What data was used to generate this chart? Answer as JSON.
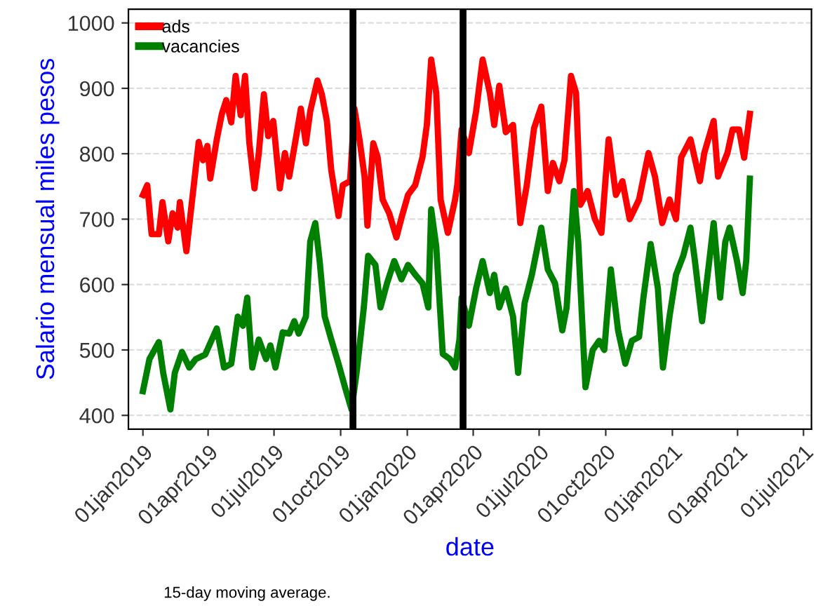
{
  "chart_data": {
    "type": "line",
    "xlabel": "date",
    "ylabel": "Salario mensual miles pesos",
    "annotations": [
      "15-day moving average."
    ],
    "xlim": [
      "2018-12-12",
      "2021-07-12"
    ],
    "ylim": [
      379,
      1021
    ],
    "xticks": [
      {
        "value": "2019-01-01",
        "label": "01jan2019"
      },
      {
        "value": "2019-04-01",
        "label": "01apr2019"
      },
      {
        "value": "2019-07-01",
        "label": "01jul2019"
      },
      {
        "value": "2019-10-01",
        "label": "01oct2019"
      },
      {
        "value": "2020-01-01",
        "label": "01jan2020"
      },
      {
        "value": "2020-04-01",
        "label": "01apr2020"
      },
      {
        "value": "2020-07-01",
        "label": "01jul2020"
      },
      {
        "value": "2020-10-01",
        "label": "01oct2020"
      },
      {
        "value": "2021-01-01",
        "label": "01jan2021"
      },
      {
        "value": "2021-04-01",
        "label": "01apr2021"
      },
      {
        "value": "2021-07-01",
        "label": "01jul2021"
      }
    ],
    "yticks": [
      400,
      500,
      600,
      700,
      800,
      900,
      1000
    ],
    "grid": "y",
    "legend": "top left",
    "ref_lines": [
      {
        "axis": "x",
        "value": "2019-10-18",
        "color": "#000000"
      },
      {
        "axis": "x",
        "value": "2020-03-18",
        "color": "#000000"
      }
    ],
    "series": [
      {
        "name": "ads",
        "color": "#ff0000",
        "x": [
          "2019-01-01",
          "2019-01-07",
          "2019-01-13",
          "2019-01-23",
          "2019-01-28",
          "2019-02-05",
          "2019-02-11",
          "2019-02-18",
          "2019-02-21",
          "2019-03-02",
          "2019-03-09",
          "2019-03-19",
          "2019-03-25",
          "2019-03-31",
          "2019-04-04",
          "2019-04-13",
          "2019-04-20",
          "2019-04-26",
          "2019-05-03",
          "2019-05-09",
          "2019-05-16",
          "2019-05-22",
          "2019-05-28",
          "2019-06-04",
          "2019-06-10",
          "2019-06-17",
          "2019-06-23",
          "2019-06-30",
          "2019-07-09",
          "2019-07-16",
          "2019-07-22",
          "2019-08-01",
          "2019-08-07",
          "2019-08-14",
          "2019-08-20",
          "2019-08-30",
          "2019-09-05",
          "2019-09-12",
          "2019-09-18",
          "2019-09-28",
          "2019-10-04",
          "2019-10-14",
          "2019-10-20",
          "2019-10-27",
          "2019-11-03",
          "2019-11-07",
          "2019-11-15",
          "2019-11-21",
          "2019-11-28",
          "2019-12-07",
          "2019-12-17",
          "2019-12-24",
          "2020-01-02",
          "2020-01-12",
          "2020-01-22",
          "2020-01-28",
          "2020-02-03",
          "2020-02-10",
          "2020-02-16",
          "2020-02-26",
          "2020-03-07",
          "2020-03-10",
          "2020-03-16",
          "2020-03-26",
          "2020-04-05",
          "2020-04-14",
          "2020-04-24",
          "2020-04-30",
          "2020-05-07",
          "2020-05-16",
          "2020-05-26",
          "2020-06-05",
          "2020-06-14",
          "2020-06-24",
          "2020-07-04",
          "2020-07-13",
          "2020-07-20",
          "2020-07-29",
          "2020-08-05",
          "2020-08-14",
          "2020-08-21",
          "2020-08-27",
          "2020-09-06",
          "2020-09-16",
          "2020-09-25",
          "2020-10-05",
          "2020-10-15",
          "2020-10-24",
          "2020-11-03",
          "2020-11-16",
          "2020-11-29",
          "2020-12-08",
          "2020-12-18",
          "2020-12-28",
          "2021-01-06",
          "2021-01-13",
          "2021-01-26",
          "2021-02-08",
          "2021-02-14",
          "2021-02-27",
          "2021-03-05",
          "2021-03-18",
          "2021-03-25",
          "2021-04-03",
          "2021-04-10",
          "2021-04-18"
        ],
        "values": [
          737,
          752,
          677,
          677,
          726,
          666,
          709,
          687,
          726,
          651,
          720,
          818,
          790,
          812,
          762,
          822,
          861,
          882,
          848,
          919,
          859,
          919,
          816,
          747,
          801,
          891,
          827,
          850,
          747,
          801,
          765,
          829,
          869,
          816,
          865,
          912,
          891,
          850,
          775,
          705,
          752,
          758,
          869,
          822,
          765,
          690,
          816,
          795,
          730,
          709,
          672,
          702,
          737,
          752,
          795,
          844,
          944,
          893,
          730,
          679,
          730,
          752,
          837,
          801,
          865,
          944,
          893,
          844,
          904,
          833,
          844,
          694,
          752,
          839,
          872,
          743,
          786,
          758,
          790,
          919,
          893,
          722,
          743,
          700,
          679,
          822,
          737,
          758,
          700,
          730,
          801,
          765,
          694,
          730,
          700,
          794,
          822,
          758,
          801,
          850,
          765,
          801,
          837,
          837,
          794,
          861
        ]
      },
      {
        "name": "vacancies",
        "color": "#008000",
        "x": [
          "2019-01-01",
          "2019-01-10",
          "2019-01-23",
          "2019-01-29",
          "2019-02-08",
          "2019-02-14",
          "2019-02-24",
          "2019-03-06",
          "2019-03-15",
          "2019-03-28",
          "2019-04-13",
          "2019-04-23",
          "2019-05-03",
          "2019-05-12",
          "2019-05-19",
          "2019-05-25",
          "2019-06-01",
          "2019-06-10",
          "2019-06-20",
          "2019-06-26",
          "2019-07-03",
          "2019-07-13",
          "2019-07-22",
          "2019-07-29",
          "2019-08-04",
          "2019-08-14",
          "2019-08-20",
          "2019-08-27",
          "2019-09-02",
          "2019-09-09",
          "2019-09-18",
          "2019-09-28",
          "2019-10-07",
          "2019-10-16",
          "2019-10-23",
          "2019-11-02",
          "2019-11-08",
          "2019-11-18",
          "2019-11-25",
          "2019-12-04",
          "2019-12-14",
          "2019-12-24",
          "2020-01-02",
          "2020-01-12",
          "2020-01-22",
          "2020-01-30",
          "2020-02-03",
          "2020-02-10",
          "2020-02-19",
          "2020-02-29",
          "2020-03-07",
          "2020-03-13",
          "2020-03-16",
          "2020-03-26",
          "2020-04-05",
          "2020-04-14",
          "2020-04-24",
          "2020-04-30",
          "2020-05-07",
          "2020-05-16",
          "2020-05-26",
          "2020-06-02",
          "2020-06-11",
          "2020-06-21",
          "2020-07-04",
          "2020-07-13",
          "2020-07-23",
          "2020-08-02",
          "2020-08-08",
          "2020-08-18",
          "2020-08-24",
          "2020-09-03",
          "2020-09-13",
          "2020-09-22",
          "2020-09-29",
          "2020-10-08",
          "2020-10-18",
          "2020-10-28",
          "2020-11-06",
          "2020-11-16",
          "2020-11-22",
          "2020-12-02",
          "2020-12-12",
          "2020-12-19",
          "2020-12-28",
          "2021-01-06",
          "2021-01-16",
          "2021-01-26",
          "2021-02-01",
          "2021-02-11",
          "2021-02-21",
          "2021-02-27",
          "2021-03-08",
          "2021-03-15",
          "2021-03-21",
          "2021-03-31",
          "2021-04-08",
          "2021-04-13",
          "2021-04-18"
        ],
        "values": [
          437,
          486,
          512,
          465,
          409,
          465,
          497,
          473,
          486,
          493,
          533,
          473,
          479,
          551,
          537,
          580,
          473,
          516,
          486,
          507,
          473,
          527,
          525,
          544,
          525,
          551,
          666,
          694,
          636,
          551,
          516,
          479,
          443,
          409,
          465,
          565,
          644,
          630,
          565,
          602,
          636,
          608,
          630,
          615,
          602,
          565,
          715,
          658,
          494,
          486,
          473,
          516,
          580,
          537,
          594,
          636,
          587,
          615,
          565,
          594,
          551,
          465,
          572,
          615,
          687,
          623,
          602,
          530,
          565,
          743,
          665,
          443,
          500,
          514,
          500,
          623,
          530,
          479,
          514,
          520,
          580,
          662,
          594,
          473,
          551,
          615,
          644,
          687,
          637,
          544,
          637,
          694,
          580,
          665,
          687,
          637,
          587,
          637,
          762
        ]
      }
    ]
  }
}
